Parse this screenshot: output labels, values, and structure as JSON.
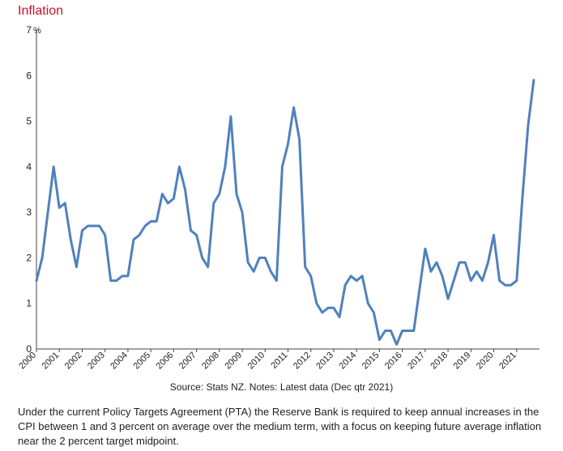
{
  "title": "Inflation",
  "source": "Source: Stats NZ. Notes: Latest data (Dec qtr 2021)",
  "note": "Under the current Policy Targets Agreement (PTA) the Reserve Bank is required to keep annual increases in the CPI between 1 and 3 percent on average over the medium term, with a focus on keeping future average inflation near the 2 percent target midpoint.",
  "colors": {
    "line": "#4f81bd",
    "title": "#c8102e"
  },
  "chart_data": {
    "type": "line",
    "title": "Inflation",
    "xlabel": "",
    "ylabel": "%",
    "ylim": [
      0,
      7
    ],
    "xlim": [
      2000.0,
      2022.0
    ],
    "yticks": [
      "0",
      "1",
      "2",
      "3",
      "4",
      "5",
      "6",
      "7"
    ],
    "xticks": [
      "2000",
      "2001",
      "2002",
      "2003",
      "2004",
      "2005",
      "2006",
      "2007",
      "2008",
      "2009",
      "2010",
      "2011",
      "2012",
      "2013",
      "2014",
      "2015",
      "2016",
      "2017",
      "2018",
      "2019",
      "2020",
      "2021"
    ],
    "grid": false,
    "series": [
      {
        "x": [
          2000.0,
          2000.25,
          2000.5,
          2000.75,
          2001.0,
          2001.25,
          2001.5,
          2001.75,
          2002.0,
          2002.25,
          2002.5,
          2002.75,
          2003.0,
          2003.25,
          2003.5,
          2003.75,
          2004.0,
          2004.25,
          2004.5,
          2004.75,
          2005.0,
          2005.25,
          2005.5,
          2005.75,
          2006.0,
          2006.25,
          2006.5,
          2006.75,
          2007.0,
          2007.25,
          2007.5,
          2007.75,
          2008.0,
          2008.25,
          2008.5,
          2008.75,
          2009.0,
          2009.25,
          2009.5,
          2009.75,
          2010.0,
          2010.25,
          2010.5,
          2010.75,
          2011.0,
          2011.25,
          2011.5,
          2011.75,
          2012.0,
          2012.25,
          2012.5,
          2012.75,
          2013.0,
          2013.25,
          2013.5,
          2013.75,
          2014.0,
          2014.25,
          2014.5,
          2014.75,
          2015.0,
          2015.25,
          2015.5,
          2015.75,
          2016.0,
          2016.25,
          2016.5,
          2016.75,
          2017.0,
          2017.25,
          2017.5,
          2017.75,
          2018.0,
          2018.25,
          2018.5,
          2018.75,
          2019.0,
          2019.25,
          2019.5,
          2019.75,
          2020.0,
          2020.25,
          2020.5,
          2020.75,
          2021.0,
          2021.25,
          2021.5,
          2021.75
        ],
        "values": [
          1.5,
          2.0,
          3.0,
          4.0,
          3.1,
          3.2,
          2.4,
          1.8,
          2.6,
          2.7,
          2.7,
          2.7,
          2.5,
          1.5,
          1.5,
          1.6,
          1.6,
          2.4,
          2.5,
          2.7,
          2.8,
          2.8,
          3.4,
          3.2,
          3.3,
          4.0,
          3.5,
          2.6,
          2.5,
          2.0,
          1.8,
          3.2,
          3.4,
          4.0,
          5.1,
          3.4,
          3.0,
          1.9,
          1.7,
          2.0,
          2.0,
          1.7,
          1.5,
          4.0,
          4.5,
          5.3,
          4.6,
          1.8,
          1.6,
          1.0,
          0.8,
          0.9,
          0.9,
          0.7,
          1.4,
          1.6,
          1.5,
          1.6,
          1.0,
          0.8,
          0.2,
          0.4,
          0.4,
          0.1,
          0.4,
          0.4,
          0.4,
          1.3,
          2.2,
          1.7,
          1.9,
          1.6,
          1.1,
          1.5,
          1.9,
          1.9,
          1.5,
          1.7,
          1.5,
          1.9,
          2.5,
          1.5,
          1.4,
          1.4,
          1.5,
          3.3,
          4.9,
          5.9
        ]
      }
    ]
  }
}
